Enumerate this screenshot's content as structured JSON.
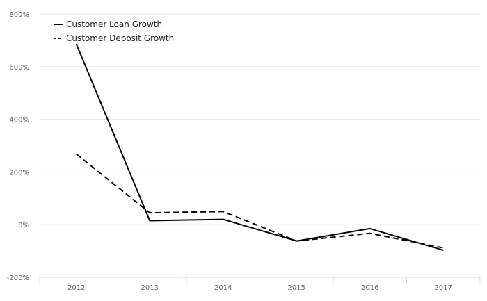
{
  "chart_data": {
    "type": "line",
    "title": "",
    "xlabel": "",
    "ylabel": "",
    "categories": [
      "2012",
      "2013",
      "2014",
      "2015",
      "2016",
      "2017"
    ],
    "ylim": [
      -200,
      800
    ],
    "yticks": [
      -200,
      0,
      200,
      400,
      600,
      800
    ],
    "ytick_labels": [
      "-200%",
      "0%",
      "200%",
      "400%",
      "600%",
      "800%"
    ],
    "grid": true,
    "legend_position": "top-left",
    "series": [
      {
        "name": "Customer Loan Growth",
        "style": "solid",
        "color": "#000000",
        "values": [
          685,
          15,
          20,
          -62,
          -15,
          -97
        ]
      },
      {
        "name": "Customer Deposit Growth",
        "style": "dashed",
        "color": "#000000",
        "values": [
          268,
          45,
          50,
          -62,
          -33,
          -88
        ]
      }
    ]
  }
}
